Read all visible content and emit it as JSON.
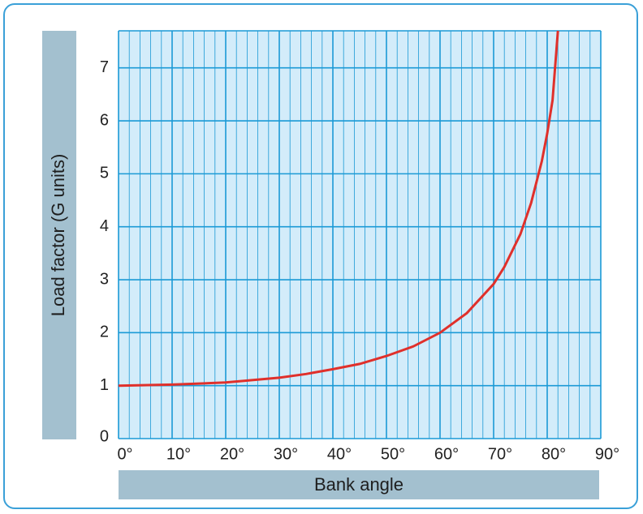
{
  "chart_data": {
    "type": "line",
    "title": "",
    "xlabel": "Bank angle",
    "ylabel": "Load factor (G units)",
    "xlim": [
      0,
      90
    ],
    "ylim": [
      0,
      7.7
    ],
    "x_ticks": [
      "0°",
      "10°",
      "20°",
      "30°",
      "40°",
      "50°",
      "60°",
      "70°",
      "80°",
      "90°"
    ],
    "y_ticks": [
      "0",
      "1",
      "2",
      "3",
      "4",
      "5",
      "6",
      "7"
    ],
    "grid": true,
    "series": [
      {
        "x": [
          0,
          10,
          20,
          30,
          35,
          40,
          45,
          50,
          55,
          60,
          65,
          70,
          72,
          75,
          77,
          79,
          80,
          81,
          82
        ],
        "y": [
          1.0,
          1.02,
          1.06,
          1.15,
          1.22,
          1.31,
          1.41,
          1.56,
          1.74,
          2.0,
          2.37,
          2.92,
          3.24,
          3.86,
          4.45,
          5.24,
          5.76,
          6.39,
          7.7
        ],
        "color": "#e0302b"
      }
    ]
  },
  "colors": {
    "plot_bg": "#d3ecfa",
    "grid": "#1b9ad6",
    "label_bar": "#a3c0cf",
    "frame": "#3aa0d8",
    "curve": "#e0302b"
  }
}
